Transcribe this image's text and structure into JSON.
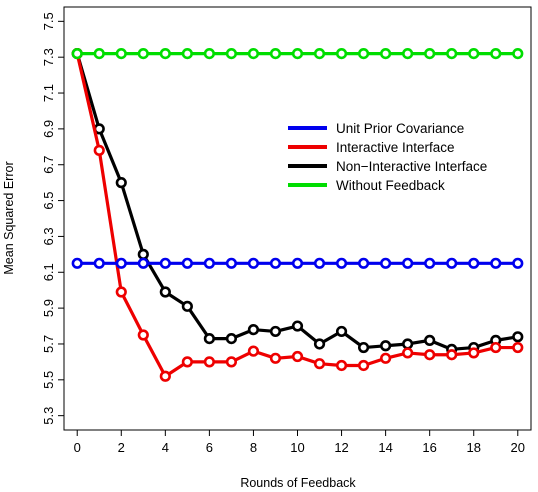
{
  "chart_data": {
    "type": "line",
    "title": "",
    "xlabel": "Rounds of Feedback",
    "ylabel": "Mean Squared Error",
    "xlim": [
      -0.6,
      20.6
    ],
    "ylim": [
      5.22,
      7.58
    ],
    "x_ticks": [
      0,
      2,
      4,
      6,
      8,
      10,
      12,
      14,
      16,
      18,
      20
    ],
    "x_tick_labels": [
      "0",
      "2",
      "4",
      "6",
      "8",
      "10",
      "12",
      "14",
      "16",
      "18",
      "20"
    ],
    "y_ticks": [
      5.3,
      5.5,
      5.7,
      5.9,
      6.1,
      6.3,
      6.5,
      6.7,
      6.9,
      7.1,
      7.3,
      7.5
    ],
    "y_tick_labels": [
      "5.3",
      "5.5",
      "5.7",
      "5.9",
      "6.1",
      "6.3",
      "6.5",
      "6.7",
      "6.9",
      "7.1",
      "7.3",
      "7.5"
    ],
    "grid": false,
    "legend_position": "right-center",
    "x": [
      0,
      1,
      2,
      3,
      4,
      5,
      6,
      7,
      8,
      9,
      10,
      11,
      12,
      13,
      14,
      15,
      16,
      17,
      18,
      19,
      20
    ],
    "series": [
      {
        "name": "Unit Prior Covariance",
        "color": "#0000ee",
        "values": [
          6.15,
          6.15,
          6.15,
          6.15,
          6.15,
          6.15,
          6.15,
          6.15,
          6.15,
          6.15,
          6.15,
          6.15,
          6.15,
          6.15,
          6.15,
          6.15,
          6.15,
          6.15,
          6.15,
          6.15,
          6.15
        ]
      },
      {
        "name": "Interactive Interface",
        "color": "#ee0000",
        "values": [
          7.32,
          6.78,
          5.99,
          5.75,
          5.52,
          5.6,
          5.6,
          5.6,
          5.66,
          5.62,
          5.63,
          5.59,
          5.58,
          5.58,
          5.62,
          5.65,
          5.64,
          5.64,
          5.65,
          5.68,
          5.68
        ]
      },
      {
        "name": "Non−Interactive Interface",
        "color": "#000000",
        "values": [
          7.32,
          6.9,
          6.6,
          6.2,
          5.99,
          5.91,
          5.73,
          5.73,
          5.78,
          5.77,
          5.8,
          5.7,
          5.77,
          5.68,
          5.69,
          5.7,
          5.72,
          5.67,
          5.68,
          5.72,
          5.74
        ]
      },
      {
        "name": "Without Feedback",
        "color": "#00dd00",
        "values": [
          7.32,
          7.32,
          7.32,
          7.32,
          7.32,
          7.32,
          7.32,
          7.32,
          7.32,
          7.32,
          7.32,
          7.32,
          7.32,
          7.32,
          7.32,
          7.32,
          7.32,
          7.32,
          7.32,
          7.32,
          7.32
        ]
      }
    ]
  }
}
